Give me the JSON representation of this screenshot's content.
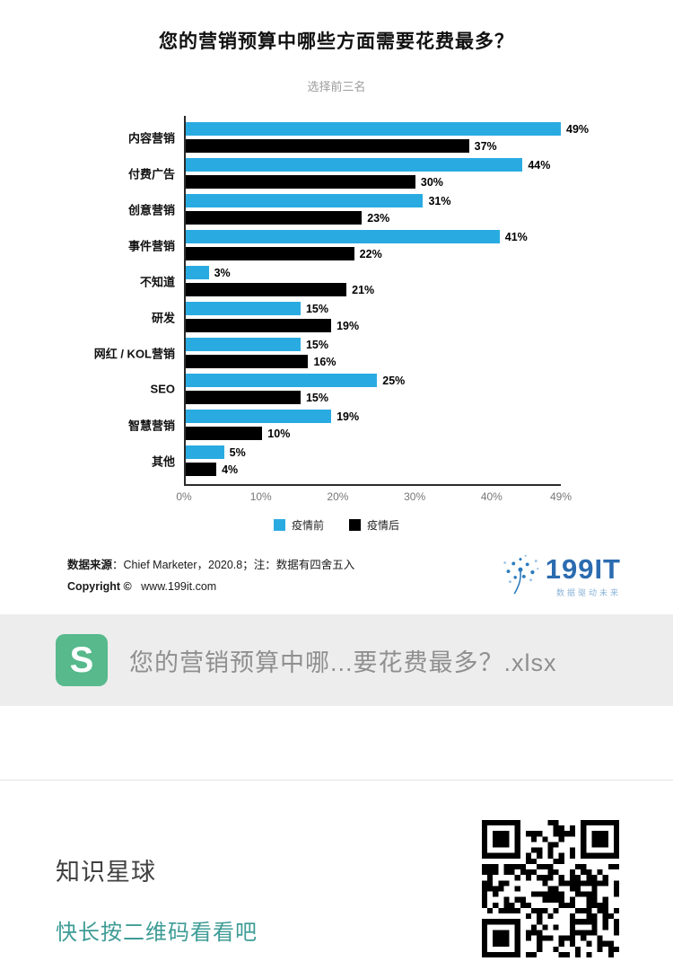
{
  "chart": {
    "title": "您的营销预算中哪些方面需要花费最多？",
    "subtitle": "选择前三名",
    "source_bold": "数据来源",
    "source_rest": "：Chief Marketer，2020.8；注：数据有四舍五入",
    "copyright_bold": "Copyright ©",
    "copyright_rest": "www.199it.com",
    "logo_text": "199IT",
    "logo_tagline": "数据驱动未来"
  },
  "chart_data": {
    "type": "bar",
    "orientation": "horizontal",
    "title": "您的营销预算中哪些方面需要花费最多？",
    "subtitle": "选择前三名",
    "categories": [
      "内容营销",
      "付费广告",
      "创意营销",
      "事件营销",
      "不知道",
      "研发",
      "网红 / KOL营销",
      "SEO",
      "智慧营销",
      "其他"
    ],
    "series": [
      {
        "name": "疫情前",
        "color": "#29abe2",
        "values": [
          49,
          44,
          31,
          41,
          3,
          15,
          15,
          25,
          19,
          5
        ]
      },
      {
        "name": "疫情后",
        "color": "#000000",
        "values": [
          37,
          30,
          23,
          22,
          21,
          19,
          16,
          15,
          10,
          4
        ]
      }
    ],
    "value_suffix": "%",
    "xlim": [
      0,
      49
    ],
    "xticks": [
      0,
      10,
      20,
      30,
      40,
      49
    ],
    "xtick_labels": [
      "0%",
      "10%",
      "20%",
      "30%",
      "40%",
      "49%"
    ],
    "legend_position": "bottom",
    "grid": false
  },
  "attachment": {
    "icon_letter": "S",
    "filename": "您的营销预算中哪...要花费最多？.xlsx"
  },
  "footer": {
    "title": "知识星球",
    "subtitle": "快长按二维码看看吧"
  }
}
